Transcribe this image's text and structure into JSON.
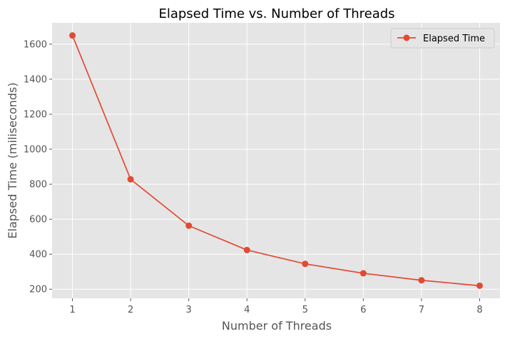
{
  "chart_data": {
    "type": "line",
    "title": "Elapsed Time vs. Number of Threads",
    "xlabel": "Number of Threads",
    "ylabel": "Elapsed Time (miliseconds)",
    "x": [
      1,
      2,
      3,
      4,
      5,
      6,
      7,
      8
    ],
    "xticks": [
      "1",
      "2",
      "3",
      "4",
      "5",
      "6",
      "7",
      "8"
    ],
    "yticks": [
      "200",
      "400",
      "600",
      "800",
      "1000",
      "1200",
      "1400",
      "1600"
    ],
    "xlim": [
      0.65,
      8.35
    ],
    "ylim": [
      148,
      1722
    ],
    "grid": true,
    "legend_position": "top-right",
    "series": [
      {
        "name": "Elapsed Time",
        "values": [
          1650,
          828,
          563,
          424,
          345,
          291,
          251,
          220
        ],
        "color": "#E24A33",
        "marker": "circle"
      }
    ],
    "colors": {
      "plot_background": "#E5E5E5",
      "grid": "#FFFFFF",
      "text": "#555555"
    }
  }
}
